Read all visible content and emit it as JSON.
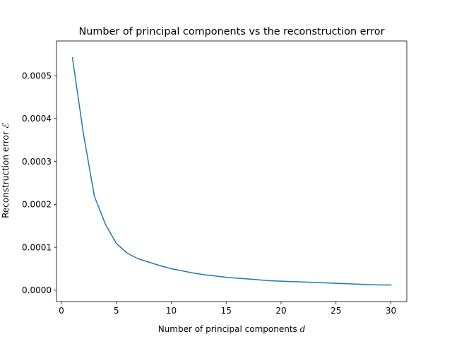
{
  "chart_data": {
    "type": "line",
    "title": "Number of principal components vs the reconstruction error",
    "xlabel": "Number of principal components",
    "xlabel_symbol": "d",
    "ylabel": "Reconstruction error",
    "ylabel_symbol": "ℰ",
    "xlim": [
      -0.45,
      31.45
    ],
    "ylim": [
      -2.66e-05,
      0.000581
    ],
    "x_ticks": [
      0,
      5,
      10,
      15,
      20,
      25,
      30
    ],
    "x_tick_labels": [
      "0",
      "5",
      "10",
      "15",
      "20",
      "25",
      "30"
    ],
    "y_ticks": [
      0,
      0.0001,
      0.0002,
      0.0003,
      0.0004,
      0.0005
    ],
    "y_tick_labels": [
      "0.0000",
      "0.0001",
      "0.0002",
      "0.0003",
      "0.0004",
      "0.0005"
    ],
    "grid": false,
    "line_color": "#1f77b4",
    "series": [
      {
        "x": [
          1,
          2,
          3,
          4,
          5,
          6,
          7,
          8,
          9,
          10,
          11,
          12,
          13,
          14,
          15,
          16,
          17,
          18,
          19,
          20,
          21,
          22,
          23,
          24,
          25,
          26,
          27,
          28,
          29,
          30
        ],
        "values": [
          0.000542,
          0.000365,
          0.000219,
          0.000154,
          0.000109,
          8.6e-05,
          7.3e-05,
          6.5e-05,
          5.7e-05,
          5e-05,
          4.5e-05,
          4e-05,
          3.6e-05,
          3.3e-05,
          3e-05,
          2.8e-05,
          2.6e-05,
          2.4e-05,
          2.2e-05,
          2.1e-05,
          2e-05,
          1.9e-05,
          1.8e-05,
          1.7e-05,
          1.6e-05,
          1.5e-05,
          1.4e-05,
          1.3e-05,
          1.2e-05,
          1.2e-05
        ]
      }
    ]
  }
}
